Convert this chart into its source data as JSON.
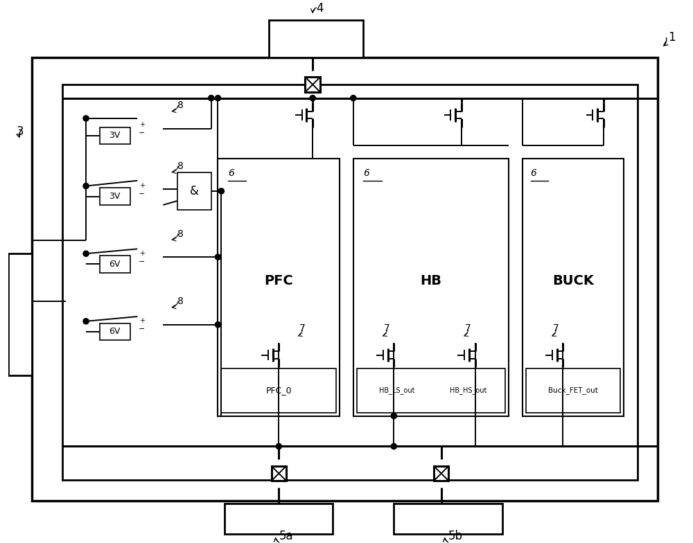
{
  "bg_color": "#ffffff",
  "fig_width": 10.0,
  "fig_height": 7.84,
  "label_1": "1",
  "label_3": "3",
  "label_4": "4",
  "label_5a": "5a",
  "label_5b": "5b",
  "label_6": "6",
  "label_7": "7",
  "label_8": "8",
  "label_pfc": "PFC",
  "label_hb": "HB",
  "label_buck": "BUCK",
  "label_pfc_o": "PFC_0",
  "label_hb_ls": "HB_LS_out",
  "label_hb_hs": "HB_HS_out",
  "label_buck_fet": "Buck_FET_out",
  "label_3v": "3V",
  "label_6v": "6V",
  "label_and": "&"
}
